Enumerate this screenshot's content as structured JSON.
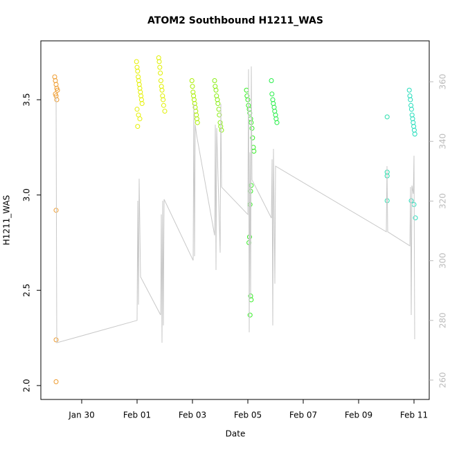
{
  "chart_data": {
    "type": "scatter",
    "title": "ATOM2 Southbound H1211_WAS",
    "xlabel": "Date",
    "ylabel": "H1211_WAS",
    "xlim": [
      -1.475,
      12.55
    ],
    "xticks": [
      {
        "value": 0,
        "label": "Jan 30"
      },
      {
        "value": 2,
        "label": "Feb 01"
      },
      {
        "value": 4,
        "label": "Feb 03"
      },
      {
        "value": 6,
        "label": "Feb 05"
      },
      {
        "value": 8,
        "label": "Feb 07"
      },
      {
        "value": 10,
        "label": "Feb 09"
      },
      {
        "value": 12,
        "label": "Feb 11"
      }
    ],
    "ylim": [
      1.927,
      3.809
    ],
    "yticks": [
      {
        "value": 2,
        "label": "2.0"
      },
      {
        "value": 2.5,
        "label": "2.5"
      },
      {
        "value": 3,
        "label": "3.0"
      },
      {
        "value": 3.5,
        "label": "3.5"
      }
    ],
    "y2lim": [
      253.5,
      373.7
    ],
    "y2ticks": [
      260,
      280,
      300,
      320,
      340,
      360
    ],
    "series": [
      {
        "color": "#ee9a2c",
        "x": [
          -0.975,
          -0.95,
          -0.925,
          -0.9,
          -0.875,
          -0.95,
          -0.925,
          -0.9,
          -0.925,
          -0.925,
          -0.925
        ],
        "values": [
          3.62,
          3.6,
          3.58,
          3.56,
          3.55,
          3.53,
          3.52,
          3.5,
          2.92,
          2.24,
          2.02
        ]
      },
      {
        "color": "#e5f000",
        "x": [
          1.98,
          2.0,
          2.02,
          2.04,
          2.06,
          2.08,
          2.1,
          2.12,
          2.14,
          2.16,
          2.18,
          2.0,
          2.05,
          2.1,
          2.02
        ],
        "values": [
          3.7,
          3.67,
          3.65,
          3.62,
          3.6,
          3.58,
          3.56,
          3.54,
          3.52,
          3.5,
          3.48,
          3.45,
          3.42,
          3.4,
          3.36
        ]
      },
      {
        "color": "#e0f000",
        "x": [
          2.78,
          2.8,
          2.82,
          2.84,
          2.86,
          2.88,
          2.9,
          2.92,
          2.94,
          2.96,
          3.0
        ],
        "values": [
          3.72,
          3.7,
          3.67,
          3.64,
          3.6,
          3.57,
          3.55,
          3.52,
          3.5,
          3.47,
          3.44
        ]
      },
      {
        "color": "#aaee00",
        "x": [
          3.98,
          4.0,
          4.02,
          4.04,
          4.06,
          4.08,
          4.1,
          4.12,
          4.14,
          4.16,
          4.18
        ],
        "values": [
          3.6,
          3.57,
          3.54,
          3.52,
          3.5,
          3.48,
          3.46,
          3.44,
          3.42,
          3.4,
          3.38
        ]
      },
      {
        "color": "#88ee11",
        "x": [
          4.8,
          4.82,
          4.85,
          4.87,
          4.9,
          4.92,
          4.95,
          4.97,
          5.0,
          5.02,
          5.05
        ],
        "values": [
          3.6,
          3.57,
          3.55,
          3.52,
          3.5,
          3.48,
          3.45,
          3.42,
          3.38,
          3.36,
          3.34
        ]
      },
      {
        "color": "#33ee22",
        "x": [
          5.95,
          5.97,
          6.0,
          6.02,
          6.05,
          6.07,
          6.1,
          6.12,
          6.15,
          6.17,
          6.2,
          6.22,
          6.12,
          6.1,
          6.08,
          6.06,
          6.04,
          6.1,
          6.12,
          6.08
        ],
        "values": [
          3.55,
          3.52,
          3.5,
          3.47,
          3.45,
          3.43,
          3.4,
          3.38,
          3.35,
          3.3,
          3.25,
          3.23,
          3.05,
          3.02,
          2.95,
          2.78,
          2.75,
          2.47,
          2.45,
          2.37
        ]
      },
      {
        "color": "#22ee44",
        "x": [
          6.85,
          6.87,
          6.9,
          6.92,
          6.95,
          6.97,
          7.0,
          7.02,
          7.05
        ],
        "values": [
          3.6,
          3.53,
          3.5,
          3.48,
          3.46,
          3.44,
          3.42,
          3.4,
          3.38
        ]
      },
      {
        "color": "#22ddaa",
        "x": [
          11.03,
          11.03,
          11.03,
          11.03
        ],
        "values": [
          3.41,
          3.12,
          3.1,
          2.97
        ]
      },
      {
        "color": "#22ddbb",
        "x": [
          11.83,
          11.85,
          11.87,
          11.89,
          11.91,
          11.93,
          11.95,
          11.97,
          11.99,
          12.01,
          12.03,
          11.9,
          12.0,
          12.05
        ],
        "values": [
          3.55,
          3.52,
          3.5,
          3.47,
          3.45,
          3.42,
          3.4,
          3.38,
          3.36,
          3.34,
          3.32,
          2.97,
          2.95,
          2.88
        ]
      },
      {
        "type": "line",
        "axis": "y2",
        "color": "#c8c8c8",
        "x": [
          -0.925,
          -0.9,
          2.0,
          2.025,
          2.05,
          2.075,
          2.125,
          2.85,
          2.875,
          2.9,
          2.925,
          2.95,
          2.975,
          4.025,
          4.05,
          4.075,
          4.1,
          4.15,
          4.8,
          4.825,
          4.85,
          4.875,
          5.0,
          5.025,
          5.05,
          6.0,
          6.025,
          6.05,
          6.075,
          6.1,
          6.125,
          6.15,
          6.85,
          6.875,
          6.9,
          6.925,
          6.975,
          7.0,
          11.0,
          11.025,
          11.05,
          11.85,
          11.875,
          11.9,
          11.925,
          11.975,
          12.0,
          12.025
        ],
        "values": [
          354.9,
          272.5,
          280.0,
          320.1,
          285.3,
          327.5,
          294.6,
          281.8,
          315.5,
          272.5,
          320.1,
          278.3,
          320.6,
          300.1,
          352.6,
          301.5,
          345.6,
          342.1,
          308.5,
          345.6,
          296.9,
          344.5,
          302.7,
          352.6,
          324.7,
          315.5,
          364.2,
          276.0,
          336.3,
          287.6,
          365.1,
          327.1,
          314.3,
          334.0,
          278.3,
          337.5,
          292.3,
          331.7,
          309.7,
          331.7,
          309.7,
          305.0,
          324.7,
          281.8,
          325.2,
          322.4,
          335.2,
          273.7
        ]
      }
    ]
  }
}
